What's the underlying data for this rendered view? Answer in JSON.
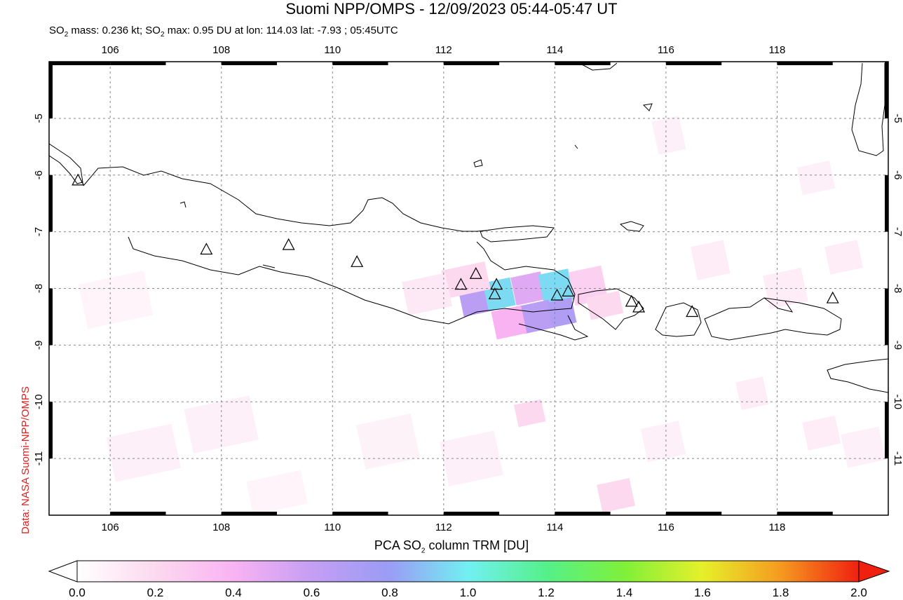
{
  "title": "Suomi NPP/OMPS - 12/09/2023 05:44-05:47 UT",
  "subtitle": {
    "prefix": "SO",
    "sub": "2",
    "mid": " mass: 0.236 kt; SO",
    "sub2": "2",
    "suffix": " max: 0.95 DU at lon: 114.03 lat: -7.93 ; 05:45UTC"
  },
  "credit": "Data: NASA Suomi-NPP/OMPS",
  "map": {
    "lon_range": [
      104.9,
      120.0
    ],
    "lat_range": [
      -12.0,
      -4.0
    ],
    "lon_ticks": [
      "106",
      "108",
      "110",
      "112",
      "114",
      "116",
      "118"
    ],
    "lat_ticks": [
      "-5",
      "-6",
      "-7",
      "-8",
      "-9",
      "-10",
      "-11"
    ],
    "volcanoes": [
      {
        "lon": 105.42,
        "lat": -6.1
      },
      {
        "lon": 107.73,
        "lat": -7.32
      },
      {
        "lon": 109.21,
        "lat": -7.24
      },
      {
        "lon": 110.44,
        "lat": -7.54
      },
      {
        "lon": 112.31,
        "lat": -7.94
      },
      {
        "lon": 112.58,
        "lat": -7.75
      },
      {
        "lon": 112.92,
        "lat": -8.11
      },
      {
        "lon": 112.95,
        "lat": -7.94
      },
      {
        "lon": 114.04,
        "lat": -8.13
      },
      {
        "lon": 114.24,
        "lat": -8.06
      },
      {
        "lon": 115.38,
        "lat": -8.24
      },
      {
        "lon": 115.51,
        "lat": -8.34
      },
      {
        "lon": 116.47,
        "lat": -8.42
      },
      {
        "lon": 119.0,
        "lat": -8.18
      }
    ],
    "so2_pixels": [
      {
        "lon": 112.3,
        "lat": -7.9,
        "w": 0.55,
        "h": 0.55,
        "v": 0.65
      },
      {
        "lon": 112.75,
        "lat": -7.85,
        "w": 0.5,
        "h": 0.5,
        "v": 0.95
      },
      {
        "lon": 113.25,
        "lat": -7.75,
        "w": 0.55,
        "h": 0.5,
        "v": 0.5
      },
      {
        "lon": 113.75,
        "lat": -7.7,
        "w": 0.55,
        "h": 0.55,
        "v": 0.95
      },
      {
        "lon": 113.4,
        "lat": -8.25,
        "w": 0.55,
        "h": 0.5,
        "v": 0.65
      },
      {
        "lon": 113.9,
        "lat": -8.2,
        "w": 0.45,
        "h": 0.45,
        "v": 0.7
      },
      {
        "lon": 112.9,
        "lat": -8.35,
        "w": 0.55,
        "h": 0.5,
        "v": 0.4
      },
      {
        "lon": 112.0,
        "lat": -7.6,
        "w": 0.8,
        "h": 0.5,
        "v": 0.2
      },
      {
        "lon": 111.3,
        "lat": -7.8,
        "w": 0.8,
        "h": 0.6,
        "v": 0.12
      },
      {
        "lon": 114.3,
        "lat": -7.65,
        "w": 0.6,
        "h": 0.6,
        "v": 0.25
      },
      {
        "lon": 114.6,
        "lat": -8.1,
        "w": 0.6,
        "h": 0.4,
        "v": 0.2
      },
      {
        "lon": 113.3,
        "lat": -10.0,
        "w": 0.5,
        "h": 0.4,
        "v": 0.2
      },
      {
        "lon": 114.8,
        "lat": -11.4,
        "w": 0.6,
        "h": 0.5,
        "v": 0.2
      },
      {
        "lon": 106.0,
        "lat": -10.5,
        "w": 1.2,
        "h": 0.8,
        "v": 0.08
      },
      {
        "lon": 107.4,
        "lat": -10.0,
        "w": 1.2,
        "h": 0.8,
        "v": 0.08
      },
      {
        "lon": 110.5,
        "lat": -10.3,
        "w": 1.0,
        "h": 0.8,
        "v": 0.07
      },
      {
        "lon": 112.0,
        "lat": -10.6,
        "w": 1.0,
        "h": 0.8,
        "v": 0.08
      },
      {
        "lon": 115.6,
        "lat": -10.4,
        "w": 0.7,
        "h": 0.6,
        "v": 0.08
      },
      {
        "lon": 117.3,
        "lat": -9.6,
        "w": 0.5,
        "h": 0.5,
        "v": 0.1
      },
      {
        "lon": 118.5,
        "lat": -10.3,
        "w": 0.6,
        "h": 0.5,
        "v": 0.1
      },
      {
        "lon": 116.5,
        "lat": -7.2,
        "w": 0.6,
        "h": 0.6,
        "v": 0.1
      },
      {
        "lon": 117.8,
        "lat": -7.7,
        "w": 0.7,
        "h": 0.6,
        "v": 0.1
      },
      {
        "lon": 118.9,
        "lat": -7.2,
        "w": 0.6,
        "h": 0.5,
        "v": 0.1
      },
      {
        "lon": 119.2,
        "lat": -10.5,
        "w": 0.7,
        "h": 0.6,
        "v": 0.08
      },
      {
        "lon": 108.5,
        "lat": -11.3,
        "w": 1.0,
        "h": 0.6,
        "v": 0.06
      },
      {
        "lon": 115.8,
        "lat": -5.0,
        "w": 0.5,
        "h": 0.6,
        "v": 0.08
      },
      {
        "lon": 118.4,
        "lat": -5.8,
        "w": 0.6,
        "h": 0.5,
        "v": 0.08
      },
      {
        "lon": 105.5,
        "lat": -7.8,
        "w": 1.2,
        "h": 0.8,
        "v": 0.06
      }
    ]
  },
  "colorbar": {
    "title_prefix": "PCA SO",
    "title_sub": "2",
    "title_suffix": " column TRM [DU]",
    "ticks": [
      "0.0",
      "0.2",
      "0.4",
      "0.6",
      "0.8",
      "1.0",
      "1.2",
      "1.4",
      "1.6",
      "1.8",
      "2.0"
    ],
    "range": [
      0.0,
      2.0
    ]
  }
}
